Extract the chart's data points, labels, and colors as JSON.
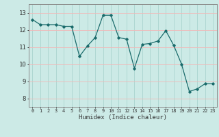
{
  "x": [
    0,
    1,
    2,
    3,
    4,
    5,
    6,
    7,
    8,
    9,
    10,
    11,
    12,
    13,
    14,
    15,
    16,
    17,
    18,
    19,
    20,
    21,
    22,
    23
  ],
  "y": [
    12.6,
    12.3,
    12.3,
    12.3,
    12.2,
    12.2,
    10.45,
    11.05,
    11.55,
    12.85,
    12.85,
    11.55,
    11.45,
    9.75,
    11.15,
    11.2,
    11.35,
    11.95,
    11.1,
    10.0,
    8.4,
    8.55,
    8.85,
    8.85
  ],
  "bg_color": "#cceae6",
  "line_color": "#1a6b6b",
  "grid_color_v": "#aad4cf",
  "grid_color_h": "#f0b8b8",
  "tick_color": "#333333",
  "xlabel": "Humidex (Indice chaleur)",
  "ylim": [
    7.5,
    13.5
  ],
  "xlim": [
    -0.5,
    23.5
  ],
  "yticks": [
    8,
    9,
    10,
    11,
    12,
    13
  ],
  "xticks": [
    0,
    1,
    2,
    3,
    4,
    5,
    6,
    7,
    8,
    9,
    10,
    11,
    12,
    13,
    14,
    15,
    16,
    17,
    18,
    19,
    20,
    21,
    22,
    23
  ],
  "xtick_labels": [
    "0",
    "1",
    "2",
    "3",
    "4",
    "5",
    "6",
    "7",
    "8",
    "9",
    "10",
    "11",
    "12",
    "13",
    "14",
    "15",
    "16",
    "17",
    "18",
    "19",
    "20",
    "21",
    "22",
    "23"
  ]
}
